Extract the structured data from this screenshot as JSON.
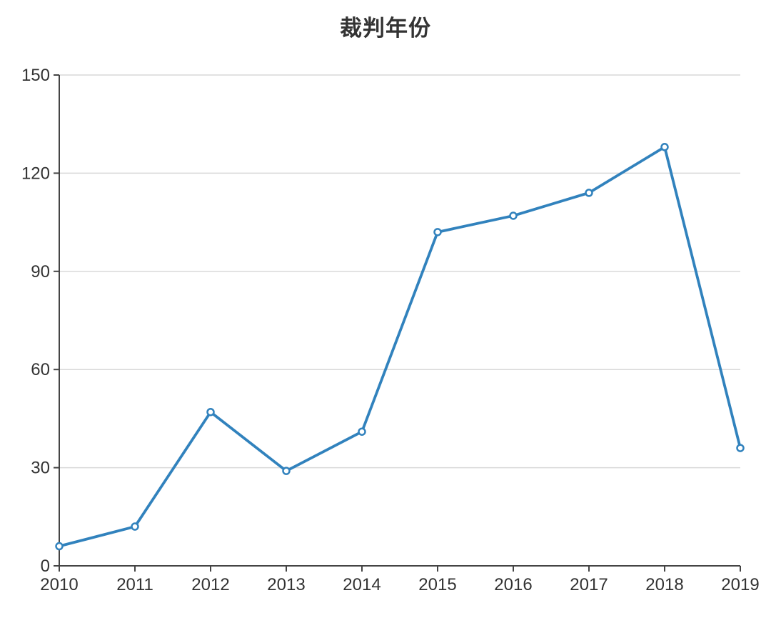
{
  "chart_data": {
    "type": "line",
    "title": "裁判年份",
    "categories": [
      "2010",
      "2011",
      "2012",
      "2013",
      "2014",
      "2015",
      "2016",
      "2017",
      "2018",
      "2019"
    ],
    "values": [
      6,
      12,
      47,
      29,
      41,
      102,
      107,
      114,
      128,
      36
    ],
    "xlabel": "",
    "ylabel": "",
    "ylim": [
      0,
      150
    ],
    "yticks": [
      0,
      30,
      60,
      90,
      120,
      150
    ],
    "grid": "horizontal-only",
    "legend": "none",
    "marker": "open-circle",
    "colors": {
      "line": "#3182bd",
      "marker_fill": "#ffffff",
      "axis": "#444444",
      "tick_label": "#333333",
      "gridline": "#d9d9d9",
      "title": "#333333",
      "background": "#ffffff"
    }
  }
}
